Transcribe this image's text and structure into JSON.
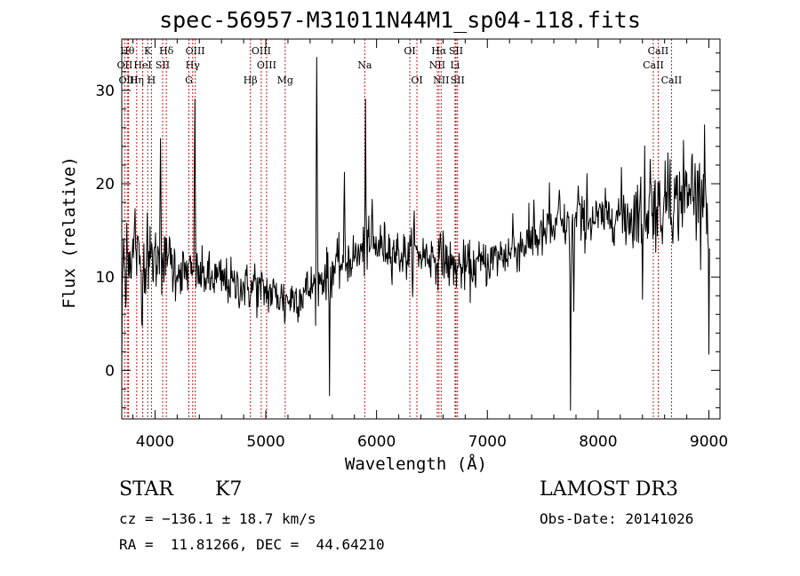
{
  "title": "spec-56957-M31011N44M1_sp04-118.fits",
  "info": {
    "class_label": "STAR",
    "subclass_label": "K7",
    "cz": "cz = −136.1 ± 18.7 km/s",
    "radec": "RA =  11.81266, DEC =  44.64210",
    "survey": "LAMOST DR3",
    "obs_date": "Obs-Date: 20141026"
  },
  "colors": {
    "line_marker": "#b22222",
    "spectrum": "#000000"
  },
  "chart_data": {
    "type": "line",
    "xlabel": "Wavelength (Å)",
    "ylabel": "Flux (relative)",
    "xlim": [
      3700,
      9100
    ],
    "ylim": [
      -5.2,
      35.5
    ],
    "xticks": [
      4000,
      5000,
      6000,
      7000,
      8000,
      9000
    ],
    "yticks": [
      0,
      10,
      20,
      30
    ],
    "grid": false,
    "lines": [
      {
        "label": "Hθ",
        "wl": 3750,
        "row": 0
      },
      {
        "label": "K",
        "wl": 3934,
        "row": 0
      },
      {
        "label": "Hδ",
        "wl": 4102,
        "row": 0
      },
      {
        "label": "OIII",
        "wl": 4363,
        "row": 0
      },
      {
        "label": "OIII",
        "wl": 4959,
        "row": 0
      },
      {
        "label": "OI",
        "wl": 6300,
        "row": 0
      },
      {
        "label": "Hα",
        "wl": 6563,
        "row": 0
      },
      {
        "label": "SII",
        "wl": 6717,
        "row": 0
      },
      {
        "label": "CaII",
        "wl": 8542,
        "row": 0
      },
      {
        "label": "OII",
        "wl": 3727,
        "row": 1
      },
      {
        "label": "HeI",
        "wl": 3889,
        "row": 1
      },
      {
        "label": "SII",
        "wl": 4069,
        "row": 1
      },
      {
        "label": "Hγ",
        "wl": 4340,
        "row": 1
      },
      {
        "label": "OIII",
        "wl": 5007,
        "row": 1
      },
      {
        "label": "Na",
        "wl": 5893,
        "row": 1
      },
      {
        "label": "NII",
        "wl": 6548,
        "row": 1
      },
      {
        "label": "Li",
        "wl": 6708,
        "row": 1
      },
      {
        "label": "CaII",
        "wl": 8498,
        "row": 1
      },
      {
        "label": "OIII",
        "wl": 3760,
        "row": 2
      },
      {
        "label": "Hη",
        "wl": 3835,
        "row": 2
      },
      {
        "label": "H",
        "wl": 3968,
        "row": 2
      },
      {
        "label": "G",
        "wl": 4306,
        "row": 2
      },
      {
        "label": "Hβ",
        "wl": 4861,
        "row": 2
      },
      {
        "label": "Mg",
        "wl": 5175,
        "row": 2
      },
      {
        "label": "OI",
        "wl": 6364,
        "row": 2
      },
      {
        "label": "NII",
        "wl": 6583,
        "row": 2
      },
      {
        "label": "SII",
        "wl": 6731,
        "row": 2
      },
      {
        "label": "CaII",
        "wl": 8662,
        "row": 2
      }
    ],
    "continuum": [
      [
        3700,
        11.5
      ],
      [
        3800,
        12.5
      ],
      [
        3900,
        11.5
      ],
      [
        4000,
        12.0
      ],
      [
        4100,
        11.5
      ],
      [
        4200,
        11.0
      ],
      [
        4300,
        10.5
      ],
      [
        4400,
        10.2
      ],
      [
        4500,
        10.0
      ],
      [
        4600,
        9.7
      ],
      [
        4700,
        9.3
      ],
      [
        4800,
        9.0
      ],
      [
        4900,
        8.6
      ],
      [
        5000,
        8.5
      ],
      [
        5100,
        8.0
      ],
      [
        5200,
        7.6
      ],
      [
        5300,
        8.0
      ],
      [
        5400,
        8.8
      ],
      [
        5500,
        9.8
      ],
      [
        5600,
        10.8
      ],
      [
        5700,
        11.6
      ],
      [
        5800,
        12.2
      ],
      [
        5900,
        12.8
      ],
      [
        6000,
        13.4
      ],
      [
        6100,
        13.2
      ],
      [
        6200,
        12.5
      ],
      [
        6300,
        12.2
      ],
      [
        6400,
        12.5
      ],
      [
        6500,
        12.2
      ],
      [
        6600,
        11.8
      ],
      [
        6700,
        11.0
      ],
      [
        6800,
        11.0
      ],
      [
        6900,
        11.2
      ],
      [
        7000,
        11.6
      ],
      [
        7100,
        12.2
      ],
      [
        7200,
        12.6
      ],
      [
        7300,
        13.4
      ],
      [
        7400,
        13.8
      ],
      [
        7500,
        14.5
      ],
      [
        7600,
        15.0
      ],
      [
        7700,
        15.4
      ],
      [
        7800,
        15.8
      ],
      [
        7900,
        16.0
      ],
      [
        8000,
        16.2
      ],
      [
        8100,
        16.5
      ],
      [
        8200,
        16.8
      ],
      [
        8300,
        16.6
      ],
      [
        8400,
        16.8
      ],
      [
        8500,
        17.2
      ],
      [
        8600,
        17.5
      ],
      [
        8700,
        18.0
      ],
      [
        8800,
        18.5
      ],
      [
        8900,
        19.0
      ],
      [
        9000,
        19.5
      ],
      [
        9100,
        19.0
      ]
    ],
    "features": [
      [
        3700,
        0.1,
        -11.0
      ],
      [
        3740,
        0.2,
        -11.0
      ],
      [
        3745,
        0.2,
        10.0
      ],
      [
        3820,
        0.2,
        3.5
      ],
      [
        3880,
        0.1,
        -6.0
      ],
      [
        3930,
        0.1,
        4.5
      ],
      [
        4050,
        0.15,
        15.0
      ],
      [
        4120,
        0.1,
        4.0
      ],
      [
        4240,
        0.1,
        -2.5
      ],
      [
        4360,
        0.12,
        20.0
      ],
      [
        4500,
        0.1,
        -1.5
      ],
      [
        4720,
        0.1,
        -1.0
      ],
      [
        4900,
        0.15,
        2.5
      ],
      [
        5170,
        0.1,
        -1.5
      ],
      [
        5460,
        0.12,
        24.0
      ],
      [
        5575,
        0.08,
        -16.0
      ],
      [
        5577,
        0.08,
        3.0
      ],
      [
        5710,
        0.1,
        8.0
      ],
      [
        5900,
        0.1,
        16.5
      ],
      [
        5960,
        0.1,
        5.0
      ],
      [
        6340,
        0.1,
        3.5
      ],
      [
        6600,
        0.1,
        3.0
      ],
      [
        6850,
        0.1,
        -1.5
      ],
      [
        7230,
        0.1,
        3.0
      ],
      [
        7420,
        0.12,
        5.0
      ],
      [
        7560,
        0.12,
        4.0
      ],
      [
        7650,
        0.12,
        5.0
      ],
      [
        7750,
        0.1,
        -20.0
      ],
      [
        7780,
        0.12,
        -9.5
      ],
      [
        7820,
        0.1,
        5.0
      ],
      [
        7900,
        0.1,
        4.0
      ],
      [
        8350,
        0.1,
        3.0
      ],
      [
        8400,
        0.12,
        -8.0
      ],
      [
        8420,
        0.1,
        4.0
      ],
      [
        8470,
        0.1,
        5.5
      ],
      [
        8510,
        0.1,
        3.0
      ],
      [
        8630,
        0.1,
        8.0
      ],
      [
        8650,
        0.1,
        4.0
      ],
      [
        8770,
        0.1,
        6.0
      ],
      [
        8850,
        0.1,
        5.0
      ],
      [
        8960,
        0.1,
        5.5
      ],
      [
        8990,
        0.12,
        -4.0
      ],
      [
        9000,
        0.1,
        -18.0
      ]
    ],
    "noise_sigma": 1.3,
    "sample_step_A": 5
  }
}
